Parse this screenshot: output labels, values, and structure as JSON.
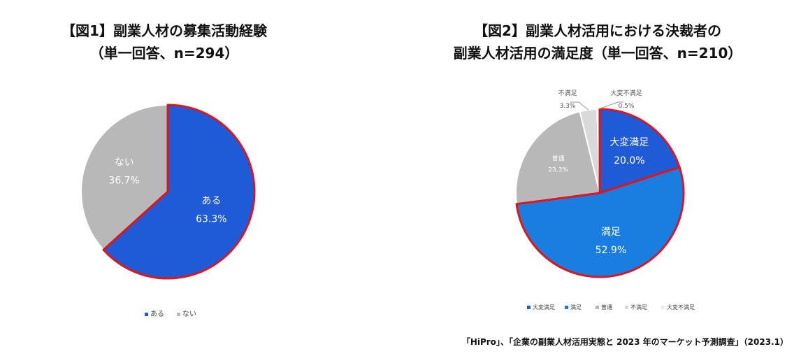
{
  "chart_data": [
    {
      "type": "pie",
      "title_line1": "【図1】副業人材の募集活動経験",
      "title_line2": "（単一回答、n=294）",
      "slices": [
        {
          "label": "ある",
          "value": 63.3,
          "display": "63.3%",
          "color": "#1f5bd6"
        },
        {
          "label": "ない",
          "value": 36.7,
          "display": "36.7%",
          "color": "#b8b8b8"
        }
      ],
      "legend": [
        "ある",
        "ない"
      ],
      "legend_position": "bottom",
      "highlight_color": "#e2141b"
    },
    {
      "type": "pie",
      "title_line1": "【図2】副業人材活用における決裁者の",
      "title_line2": "副業人材活用の満足度（単一回答、n=210）",
      "slices": [
        {
          "label": "大変満足",
          "value": 20.0,
          "display": "20.0%",
          "color": "#1f5bd6"
        },
        {
          "label": "満足",
          "value": 52.9,
          "display": "52.9%",
          "color": "#1a7de0"
        },
        {
          "label": "普通",
          "value": 23.3,
          "display": "23.3%",
          "color": "#b8b8b8"
        },
        {
          "label": "不満足",
          "value": 3.3,
          "display": "3.3%",
          "color": "#d9d9d9"
        },
        {
          "label": "大変不満足",
          "value": 0.5,
          "display": "0.5%",
          "color": "#ececec"
        }
      ],
      "legend": [
        "大変満足",
        "満足",
        "普通",
        "不満足",
        "大変不満足"
      ],
      "legend_position": "bottom",
      "highlight_color": "#e2141b"
    }
  ],
  "source": "「HiPro」、「企業の副業人材活用実態と 2023 年のマーケット予測調査」（2023.1）"
}
